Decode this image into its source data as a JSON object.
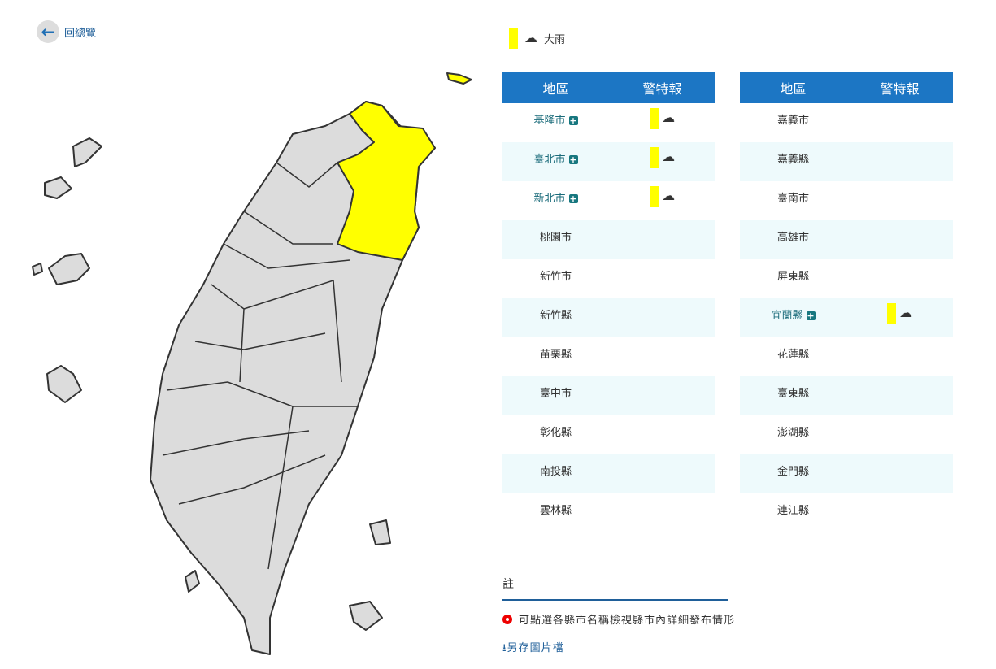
{
  "back": {
    "label": "回總覽",
    "icon": "arrow-left-icon"
  },
  "legend": {
    "color": "#ffff00",
    "icon": "heavy-rain-icon",
    "label": "大雨"
  },
  "table_headers": {
    "region": "地區",
    "warning": "警特報"
  },
  "left_rows": [
    {
      "name": "基隆市",
      "warning": true
    },
    {
      "name": "臺北市",
      "warning": true
    },
    {
      "name": "新北市",
      "warning": true
    },
    {
      "name": "桃園市",
      "warning": false
    },
    {
      "name": "新竹市",
      "warning": false
    },
    {
      "name": "新竹縣",
      "warning": false
    },
    {
      "name": "苗栗縣",
      "warning": false
    },
    {
      "name": "臺中市",
      "warning": false
    },
    {
      "name": "彰化縣",
      "warning": false
    },
    {
      "name": "南投縣",
      "warning": false
    },
    {
      "name": "雲林縣",
      "warning": false
    }
  ],
  "right_rows": [
    {
      "name": "嘉義市",
      "warning": false
    },
    {
      "name": "嘉義縣",
      "warning": false
    },
    {
      "name": "臺南市",
      "warning": false
    },
    {
      "name": "高雄市",
      "warning": false
    },
    {
      "name": "屏東縣",
      "warning": false
    },
    {
      "name": "宜蘭縣",
      "warning": true
    },
    {
      "name": "花蓮縣",
      "warning": false
    },
    {
      "name": "臺東縣",
      "warning": false
    },
    {
      "name": "澎湖縣",
      "warning": false
    },
    {
      "name": "金門縣",
      "warning": false
    },
    {
      "name": "連江縣",
      "warning": false
    }
  ],
  "note": {
    "title": "註",
    "tip": "可點選各縣市名稱檢視縣市內詳細發布情形",
    "save": "另存圖片檔"
  },
  "colors": {
    "header": "#1c76c4",
    "warning": "#ffff00",
    "map_gray": "#dcdcdc"
  }
}
